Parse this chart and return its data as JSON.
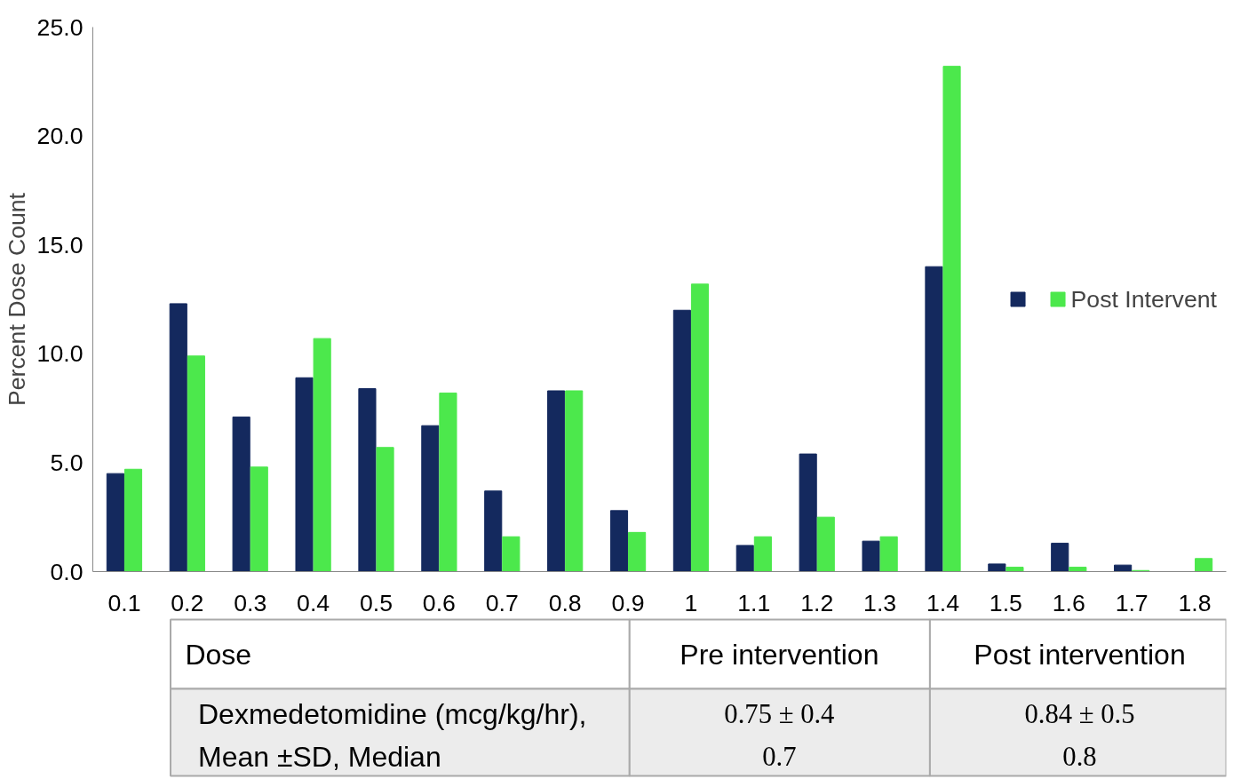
{
  "chart_data": {
    "type": "bar",
    "ylabel": "Percent Dose Count",
    "categories": [
      "0.1",
      "0.2",
      "0.3",
      "0.4",
      "0.5",
      "0.6",
      "0.7",
      "0.8",
      "0.9",
      "1",
      "1.1",
      "1.2",
      "1.3",
      "1.4",
      "1.5",
      "1.6",
      "1.7",
      "1.8"
    ],
    "series": [
      {
        "color": "#14295e",
        "values": [
          4.5,
          12.3,
          7.1,
          8.9,
          8.4,
          6.7,
          3.7,
          8.3,
          2.8,
          12.0,
          1.2,
          5.4,
          1.4,
          14.0,
          0.35,
          1.3,
          0.3,
          0
        ]
      },
      {
        "name": "Post Intervent",
        "color": "#4ce84c",
        "values": [
          4.7,
          9.9,
          4.8,
          10.7,
          5.7,
          8.2,
          1.6,
          8.3,
          1.8,
          13.2,
          1.6,
          2.5,
          1.6,
          23.2,
          0.2,
          0.2,
          0.05,
          0.6
        ]
      }
    ],
    "ylim": [
      0,
      25
    ],
    "yticks": [
      {
        "value": 0,
        "label": "0.0"
      },
      {
        "value": 5,
        "label": "5.0"
      },
      {
        "value": 10,
        "label": "10.0"
      },
      {
        "value": 15,
        "label": "15.0"
      },
      {
        "value": 20,
        "label": "20.0"
      },
      {
        "value": 25,
        "label": "25.0"
      }
    ],
    "grid": false,
    "legend": "right",
    "annotations": [
      "Dose",
      "Pre intervention",
      "Post intervention",
      "Dexmedetomidine (mcg/kg/hr),",
      "Mean ±SD, Median",
      "0.75 ± 0.4",
      "0.84 ± 0.5",
      "0.7",
      "0.8"
    ]
  }
}
